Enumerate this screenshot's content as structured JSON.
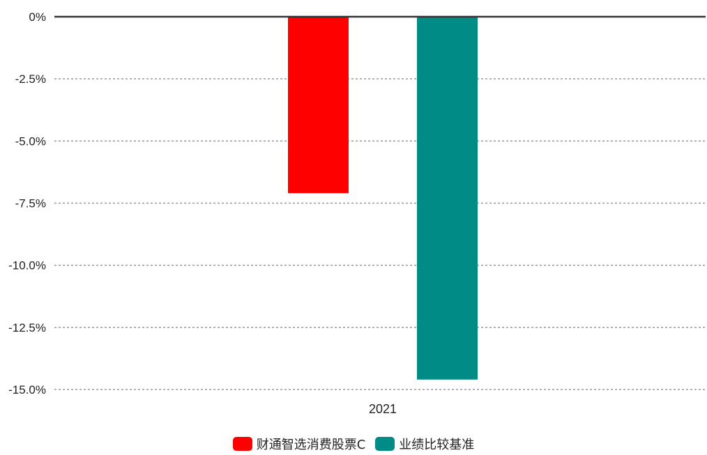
{
  "chart_data": {
    "type": "bar",
    "categories": [
      "2021"
    ],
    "series": [
      {
        "name": "财通智选消费股票C",
        "values": [
          -7.1
        ],
        "color": "#ff0000"
      },
      {
        "name": "业绩比较基准",
        "values": [
          -14.6
        ],
        "color": "#008b87"
      }
    ],
    "ylim": [
      -15,
      0
    ],
    "yticks": [
      0,
      -2.5,
      -5,
      -7.5,
      -10,
      -12.5,
      -15
    ],
    "ytick_labels": [
      "0%",
      "-2.5%",
      "-5.0%",
      "-7.5%",
      "-10.0%",
      "-12.5%",
      "-15.0%"
    ],
    "grid": true,
    "legend": "bottom-center",
    "title": "",
    "xlabel": "",
    "ylabel": ""
  }
}
